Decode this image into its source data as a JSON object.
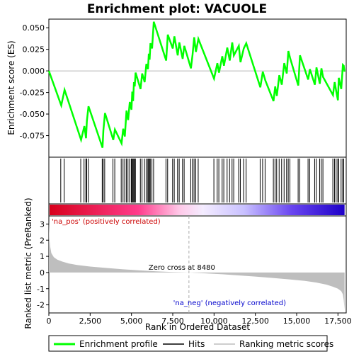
{
  "chart_data": {
    "type": "line",
    "title": "Enrichment plot: VACUOLE",
    "x_label": "Rank in Dataset",
    "x_label_bottom": "Rank in Ordered Dataset",
    "xlim": [
      0,
      18000
    ],
    "x_ticks": [
      0,
      2500,
      5000,
      7500,
      10000,
      12500,
      15000,
      17500
    ],
    "x_tick_labels": [
      "0",
      "2,500",
      "5,000",
      "7,500",
      "10,000",
      "12,500",
      "15,000",
      "17,500"
    ],
    "top_panel": {
      "ylabel": "Enrichment score (ES)",
      "ylim": [
        -0.1,
        0.06
      ],
      "y_ticks": [
        -0.075,
        -0.05,
        -0.025,
        0.0,
        0.025,
        0.05
      ],
      "y_tick_labels": [
        "-0.075",
        "-0.050",
        "-0.025",
        "0.000",
        "0.025",
        "0.050"
      ],
      "series": [
        {
          "name": "Enrichment profile",
          "color": "#00ff00",
          "x": [
            0,
            750,
            950,
            1950,
            2150,
            2250,
            2300,
            2400,
            3250,
            3300,
            3400,
            3900,
            4000,
            4400,
            4500,
            4600,
            4700,
            4800,
            4900,
            5000,
            5050,
            5100,
            5150,
            5200,
            5250,
            5550,
            5650,
            5800,
            5900,
            6000,
            6050,
            6100,
            6150,
            6250,
            6350,
            7100,
            7200,
            7500,
            7600,
            7800,
            7900,
            8100,
            8200,
            8600,
            8700,
            8800,
            8900,
            9050,
            10000,
            10200,
            10300,
            10500,
            10600,
            10800,
            10950,
            11100,
            11200,
            11500,
            11600,
            11800,
            11950,
            12800,
            12950,
            13100,
            13600,
            13700,
            13800,
            13950,
            14100,
            14250,
            14400,
            14500,
            14600,
            15100,
            15200,
            15700,
            15800,
            16100,
            16200,
            16400,
            16500,
            16600,
            17200,
            17300,
            17400,
            17500,
            17550,
            17700,
            17800,
            17850,
            17900
          ],
          "y": [
            0.0,
            -0.04,
            -0.022,
            -0.08,
            -0.064,
            -0.078,
            -0.058,
            -0.041,
            -0.089,
            -0.069,
            -0.049,
            -0.08,
            -0.068,
            -0.084,
            -0.067,
            -0.076,
            -0.046,
            -0.057,
            -0.036,
            -0.045,
            -0.024,
            -0.035,
            -0.013,
            -0.018,
            -0.002,
            -0.021,
            -0.003,
            -0.013,
            0.008,
            0.002,
            0.02,
            0.013,
            0.032,
            0.026,
            0.057,
            0.012,
            0.042,
            0.026,
            0.04,
            0.018,
            0.033,
            0.014,
            0.029,
            0.003,
            0.019,
            0.039,
            0.022,
            0.037,
            -0.009,
            0.009,
            -0.002,
            0.017,
            0.006,
            0.027,
            0.012,
            0.033,
            0.018,
            0.029,
            0.01,
            0.026,
            0.032,
            -0.019,
            -0.001,
            -0.011,
            -0.035,
            -0.018,
            -0.029,
            -0.005,
            -0.016,
            0.009,
            -0.003,
            0.023,
            0.015,
            -0.017,
            0.018,
            -0.01,
            0.002,
            -0.016,
            0.004,
            -0.015,
            0.003,
            -0.007,
            -0.028,
            -0.013,
            -0.024,
            -0.034,
            -0.008,
            -0.021,
            0.007,
            0.006,
            -0.001
          ]
        }
      ],
      "hit_ranks": [
        720,
        930,
        1930,
        2130,
        2240,
        2290,
        2390,
        3230,
        3290,
        3380,
        3880,
        3990,
        4380,
        4490,
        4590,
        4690,
        4790,
        4890,
        4990,
        5040,
        5090,
        5140,
        5190,
        5240,
        5540,
        5640,
        5790,
        5890,
        5990,
        6040,
        6090,
        6140,
        6240,
        6340,
        7090,
        7190,
        7490,
        7590,
        7790,
        7890,
        8090,
        8190,
        8590,
        8690,
        8790,
        8890,
        9040,
        9990,
        10190,
        10290,
        10490,
        10590,
        10790,
        10940,
        11090,
        11190,
        11490,
        11590,
        11790,
        11940,
        12790,
        12940,
        13090,
        13590,
        13690,
        13790,
        13940,
        14090,
        14240,
        14390,
        14490,
        14590,
        15090,
        15190,
        15690,
        15790,
        16090,
        16190,
        16390,
        16490,
        16590,
        17190,
        17290,
        17390,
        17490,
        17540,
        17690,
        17790,
        17840
      ]
    },
    "bottom_panel": {
      "ylabel": "Ranked list metric (PreRanked)",
      "ylim": [
        -2.5,
        3.5
      ],
      "y_ticks": [
        -2,
        -1,
        0,
        1,
        2,
        3
      ],
      "y_tick_labels": [
        "-2",
        "-1",
        "0",
        "1",
        "2",
        "3"
      ],
      "zero_cross": 8480,
      "zero_cross_label": "Zero cross at 8480",
      "pos_label": "'na_pos' (positively correlated)",
      "neg_label": "'na_neg' (negatively correlated)",
      "series": [
        {
          "name": "Ranking metric scores",
          "color": "#bebebe",
          "x": [
            0,
            30,
            80,
            150,
            300,
            500,
            800,
            1200,
            1700,
            2500,
            3500,
            4500,
            5500,
            6500,
            7500,
            8480,
            9500,
            10500,
            11500,
            12500,
            13500,
            14500,
            15500,
            16200,
            16800,
            17200,
            17500,
            17700,
            17800,
            17850,
            17900
          ],
          "y": [
            3.2,
            2.1,
            1.6,
            1.2,
            0.95,
            0.8,
            0.68,
            0.56,
            0.47,
            0.37,
            0.28,
            0.2,
            0.13,
            0.07,
            0.03,
            0.0,
            -0.05,
            -0.11,
            -0.18,
            -0.25,
            -0.33,
            -0.42,
            -0.52,
            -0.62,
            -0.75,
            -0.88,
            -1.0,
            -1.15,
            -1.35,
            -1.7,
            -2.3
          ]
        }
      ],
      "gradient_colors": [
        "#e8001c",
        "#ff66cc",
        "#ffc8e8",
        "#dcd8ff",
        "#8c78ff",
        "#4c1ee0",
        "#1e00c8"
      ]
    },
    "legend": [
      {
        "label": "Enrichment profile",
        "color": "#00ff00"
      },
      {
        "label": "Hits",
        "color": "#000000"
      },
      {
        "label": "Ranking metric scores",
        "color": "#bebebe"
      }
    ]
  }
}
